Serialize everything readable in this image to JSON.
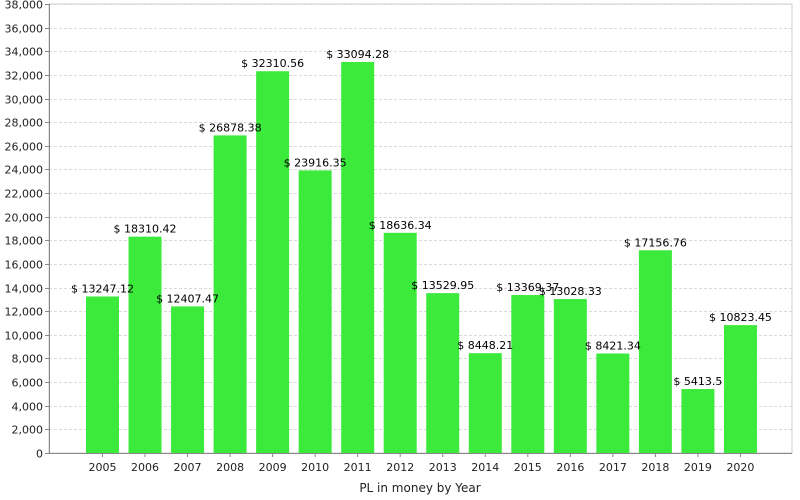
{
  "chart_data": {
    "type": "bar",
    "title": "",
    "xlabel": "PL in money by Year",
    "ylabel": "",
    "categories": [
      "2005",
      "2006",
      "2007",
      "2008",
      "2009",
      "2010",
      "2011",
      "2012",
      "2013",
      "2014",
      "2015",
      "2016",
      "2017",
      "2018",
      "2019",
      "2020"
    ],
    "values": [
      13247.12,
      18310.42,
      12407.47,
      26878.38,
      32310.56,
      23916.35,
      33094.28,
      18636.34,
      13529.95,
      8448.21,
      13369.37,
      13028.33,
      8421.34,
      17156.76,
      5413.5,
      10823.45
    ],
    "data_labels": [
      "$ 13247.12",
      "$ 18310.42",
      "$ 12407.47",
      "$ 26878.38",
      "$ 32310.56",
      "$ 23916.35",
      "$ 33094.28",
      "$ 18636.34",
      "$ 13529.95",
      "$ 8448.21",
      "$ 13369.37",
      "$ 13028.33",
      "$ 8421.34",
      "$ 17156.76",
      "$ 5413.5",
      "$ 10823.45"
    ],
    "ylim": [
      0,
      38000
    ],
    "yticks": [
      0,
      2000,
      4000,
      6000,
      8000,
      10000,
      12000,
      14000,
      16000,
      18000,
      20000,
      22000,
      24000,
      26000,
      28000,
      30000,
      32000,
      34000,
      36000,
      38000
    ],
    "ytick_labels": [
      "0",
      "2,000",
      "4,000",
      "6,000",
      "8,000",
      "10,000",
      "12,000",
      "14,000",
      "16,000",
      "18,000",
      "20,000",
      "22,000",
      "24,000",
      "26,000",
      "28,000",
      "30,000",
      "32,000",
      "34,000",
      "36,000",
      "38,000"
    ],
    "grid": true,
    "legend": "none",
    "colors": {
      "bar": "#3bea3b",
      "grid": "#d9d9d9",
      "axis": "#888888"
    }
  }
}
